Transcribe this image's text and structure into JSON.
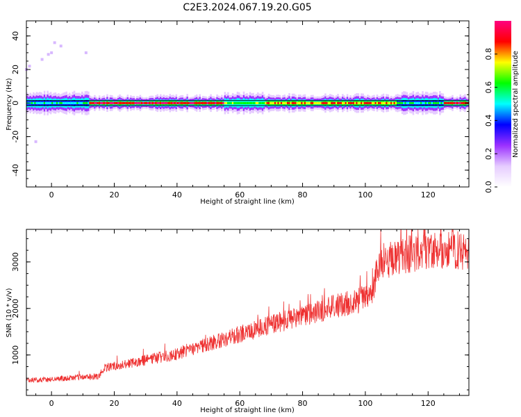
{
  "figure": {
    "title": "C2E3.2024.067.19.20.G05"
  },
  "chart_data": [
    {
      "type": "heatmap",
      "xlabel": "Height of straight line (km)",
      "ylabel": "Frequency (Hz)",
      "xlim": [
        -8,
        133
      ],
      "ylim": [
        -50,
        49
      ],
      "xticks": [
        0,
        20,
        40,
        60,
        80,
        100,
        120
      ],
      "yticks": [
        -40,
        -20,
        0,
        20,
        40
      ],
      "colorbar": {
        "label": "Normalized spectral amplitude",
        "range": [
          0,
          1
        ],
        "ticks": [
          0.0,
          0.2,
          0.4,
          0.6,
          0.8
        ],
        "colormap": [
          "#ffffff",
          "#e6ccff",
          "#9b30ff",
          "#0000ff",
          "#00ffff",
          "#00ff00",
          "#ffff00",
          "#ff0000",
          "#ff0080"
        ]
      },
      "main_signal_frequency_hz": 0,
      "segments": [
        {
          "x0": -8,
          "x1": 12,
          "amplitude": 0.45
        },
        {
          "x0": 12,
          "x1": 55,
          "amplitude": 0.85
        },
        {
          "x0": 55,
          "x1": 68,
          "amplitude": 0.55
        },
        {
          "x0": 68,
          "x1": 110,
          "amplitude": 0.75
        },
        {
          "x0": 110,
          "x1": 125,
          "amplitude": 0.5
        },
        {
          "x0": 125,
          "x1": 133,
          "amplitude": 0.85
        }
      ],
      "scatter_noise": [
        {
          "x": -7,
          "y": 22
        },
        {
          "x": -8,
          "y": 20
        },
        {
          "x": -3,
          "y": 26
        },
        {
          "x": 0,
          "y": 30
        },
        {
          "x": 1,
          "y": 36
        },
        {
          "x": 3,
          "y": 34
        },
        {
          "x": -1,
          "y": 29
        },
        {
          "x": 11,
          "y": 30
        },
        {
          "x": -5,
          "y": -23
        }
      ]
    },
    {
      "type": "line",
      "xlabel": "Height of straight line (km)",
      "ylabel": "SNR (10 * v/v)",
      "xlim": [
        -8,
        133
      ],
      "ylim": [
        130,
        3700
      ],
      "xticks": [
        0,
        20,
        40,
        60,
        80,
        100,
        120
      ],
      "yticks": [
        1000,
        2000,
        3000
      ],
      "color": "#ee3030",
      "trend": [
        {
          "x": -8,
          "y": 450
        },
        {
          "x": 15,
          "y": 540
        },
        {
          "x": 17,
          "y": 720
        },
        {
          "x": 40,
          "y": 1020
        },
        {
          "x": 60,
          "y": 1450
        },
        {
          "x": 80,
          "y": 1850
        },
        {
          "x": 102,
          "y": 2250
        },
        {
          "x": 104,
          "y": 2950
        },
        {
          "x": 115,
          "y": 3200
        },
        {
          "x": 133,
          "y": 3250
        }
      ]
    }
  ]
}
